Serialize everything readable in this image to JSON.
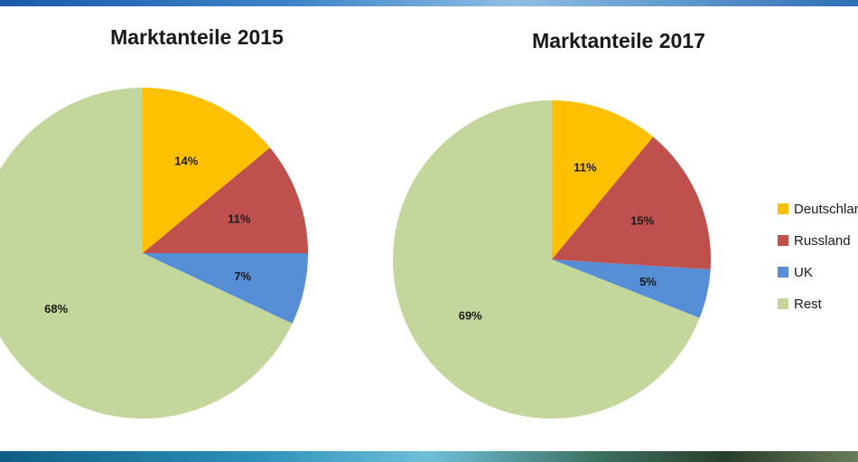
{
  "chart_data": [
    {
      "type": "pie",
      "title": "Marktanteile 2015",
      "categories": [
        "Deutschland",
        "Russland",
        "UK",
        "Rest"
      ],
      "values": [
        14,
        11,
        7,
        68
      ],
      "labels": [
        "14%",
        "11%",
        "7%",
        "68%"
      ],
      "colors": [
        "#ffc000",
        "#c0504d",
        "#558ed5",
        "#c3d69b"
      ]
    },
    {
      "type": "pie",
      "title": "Marktanteile 2017",
      "categories": [
        "Deutschland",
        "Russland",
        "UK",
        "Rest"
      ],
      "values": [
        11,
        15,
        5,
        69
      ],
      "labels": [
        "11%",
        "15%",
        "5%",
        "69%"
      ],
      "colors": [
        "#ffc000",
        "#c0504d",
        "#558ed5",
        "#c3d69b"
      ]
    }
  ],
  "legend": {
    "placement": "right",
    "items": [
      {
        "label": "Deutschland",
        "color": "#ffc000"
      },
      {
        "label": "Russland",
        "color": "#c0504d"
      },
      {
        "label": "UK",
        "color": "#558ed5"
      },
      {
        "label": "Rest",
        "color": "#c3d69b"
      }
    ]
  }
}
